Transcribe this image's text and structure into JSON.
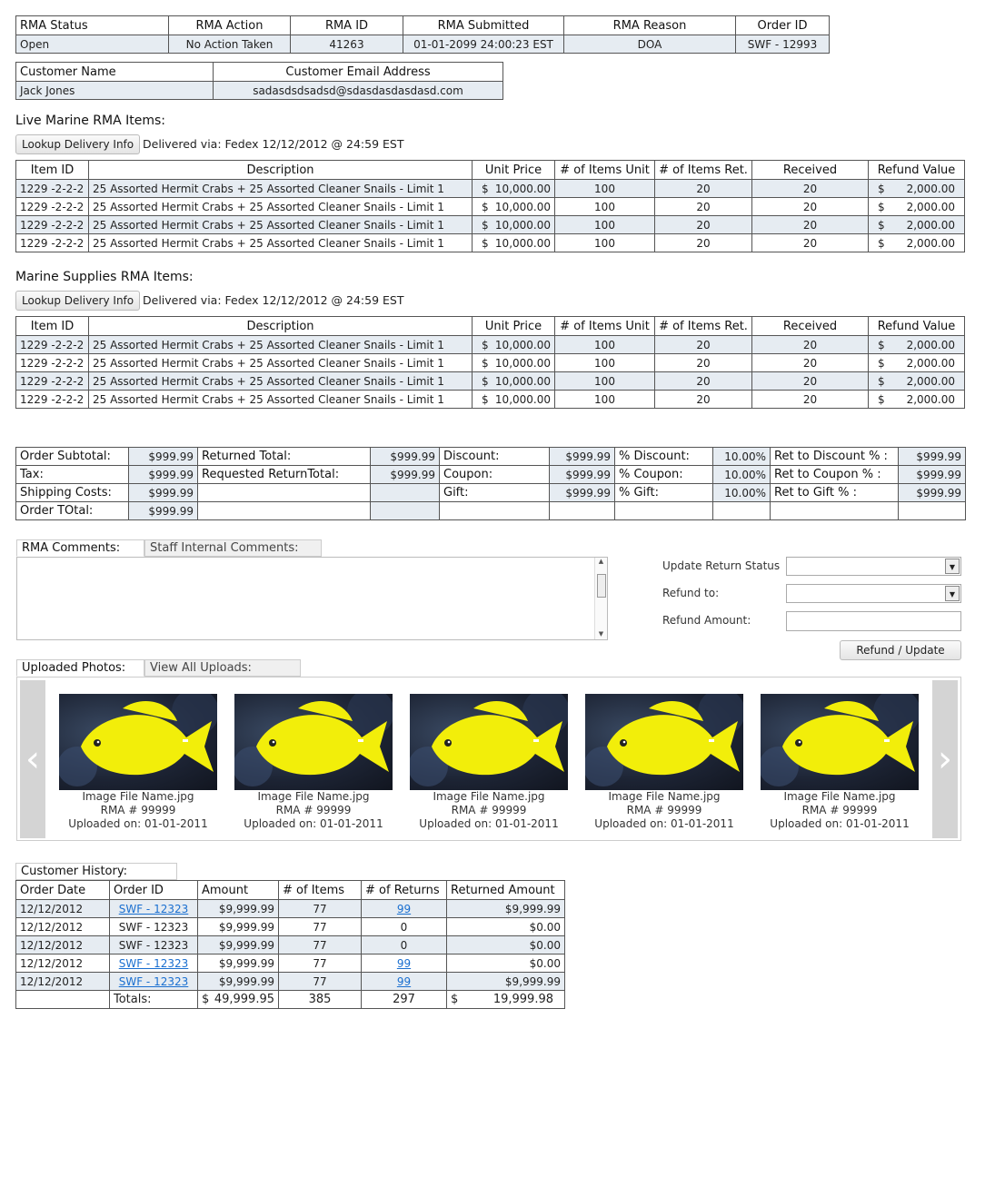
{
  "rma_header": {
    "columns": [
      "RMA Status",
      "RMA Action",
      "RMA ID",
      "RMA Submitted",
      "RMA Reason",
      "Order ID"
    ],
    "values": [
      "Open",
      "No Action Taken",
      "41263",
      "01-01-2099 24:00:23 EST",
      "DOA",
      "SWF - 12993"
    ]
  },
  "customer": {
    "columns": [
      "Customer Name",
      "Customer Email Address"
    ],
    "values": [
      "Jack Jones",
      "sadasdsdsadsd@sdasdasdasdasd.com"
    ]
  },
  "live_marine": {
    "title": "Live Marine RMA Items:",
    "lookup_label": "Lookup Delivery Info",
    "delivered_text": "Delivered via: Fedex 12/12/2012 @ 24:59 EST",
    "columns": [
      "Item ID",
      "Description",
      "Unit Price",
      "# of Items Unit",
      "# of Items Ret.",
      "Received",
      "Refund Value"
    ],
    "rows": [
      [
        "1229 -2-2-2",
        "25 Assorted Hermit Crabs + 25 Assorted Cleaner Snails - Limit 1",
        "$",
        "10,000.00",
        "100",
        "20",
        "20",
        "$",
        "2,000.00"
      ],
      [
        "1229 -2-2-2",
        "25 Assorted Hermit Crabs + 25 Assorted Cleaner Snails - Limit 1",
        "$",
        "10,000.00",
        "100",
        "20",
        "20",
        "$",
        "2,000.00"
      ],
      [
        "1229 -2-2-2",
        "25 Assorted Hermit Crabs + 25 Assorted Cleaner Snails - Limit 1",
        "$",
        "10,000.00",
        "100",
        "20",
        "20",
        "$",
        "2,000.00"
      ],
      [
        "1229 -2-2-2",
        "25 Assorted Hermit Crabs + 25 Assorted Cleaner Snails - Limit 1",
        "$",
        "10,000.00",
        "100",
        "20",
        "20",
        "$",
        "2,000.00"
      ]
    ]
  },
  "marine_supplies": {
    "title": "Marine Supplies RMA Items:",
    "lookup_label": "Lookup Delivery Info",
    "delivered_text": "Delivered via: Fedex 12/12/2012 @ 24:59 EST",
    "columns": [
      "Item ID",
      "Description",
      "Unit Price",
      "# of Items Unit",
      "# of Items Ret.",
      "Received",
      "Refund Value"
    ],
    "rows": [
      [
        "1229 -2-2-2",
        "25 Assorted Hermit Crabs + 25 Assorted Cleaner Snails - Limit 1",
        "$",
        "10,000.00",
        "100",
        "20",
        "20",
        "$",
        "2,000.00"
      ],
      [
        "1229 -2-2-2",
        "25 Assorted Hermit Crabs + 25 Assorted Cleaner Snails - Limit 1",
        "$",
        "10,000.00",
        "100",
        "20",
        "20",
        "$",
        "2,000.00"
      ],
      [
        "1229 -2-2-2",
        "25 Assorted Hermit Crabs + 25 Assorted Cleaner Snails - Limit 1",
        "$",
        "10,000.00",
        "100",
        "20",
        "20",
        "$",
        "2,000.00"
      ],
      [
        "1229 -2-2-2",
        "25 Assorted Hermit Crabs + 25 Assorted Cleaner Snails - Limit 1",
        "$",
        "10,000.00",
        "100",
        "20",
        "20",
        "$",
        "2,000.00"
      ]
    ]
  },
  "totals": {
    "rows": [
      [
        "Order Subtotal:",
        "$999.99",
        "Returned Total:",
        "$999.99",
        "Discount:",
        "$999.99",
        "% Discount:",
        "10.00%",
        "Ret to Discount % :",
        "$999.99"
      ],
      [
        "Tax:",
        "$999.99",
        "Requested ReturnTotal:",
        "$999.99",
        "Coupon:",
        "$999.99",
        "% Coupon:",
        "10.00%",
        "Ret to Coupon % :",
        "$999.99"
      ],
      [
        "Shipping Costs:",
        "$999.99",
        "",
        "",
        "Gift:",
        "$999.99",
        "% Gift:",
        "10.00%",
        "Ret to Gift % :",
        "$999.99"
      ],
      [
        "Order TOtal:",
        "$999.99",
        "",
        "",
        "",
        "",
        "",
        "",
        "",
        ""
      ]
    ]
  },
  "comments": {
    "tab_rma": "RMA Comments:",
    "tab_staff": "Staff Internal Comments:",
    "text": ""
  },
  "update_form": {
    "status_label": "Update Return Status",
    "refund_to_label": "Refund to:",
    "refund_amount_label": "Refund Amount:",
    "status_value": "",
    "refund_to_value": "",
    "refund_amount_value": "",
    "submit_label": "Refund / Update"
  },
  "uploads": {
    "tab_uploaded": "Uploaded Photos:",
    "tab_view_all": "View All Uploads:",
    "photos": [
      {
        "file": "Image File Name.jpg",
        "rma": "RMA # 99999",
        "uploaded": "Uploaded on: 01-01-2011"
      },
      {
        "file": "Image File Name.jpg",
        "rma": "RMA # 99999",
        "uploaded": "Uploaded on: 01-01-2011"
      },
      {
        "file": "Image File Name.jpg",
        "rma": "RMA # 99999",
        "uploaded": "Uploaded on: 01-01-2011"
      },
      {
        "file": "Image File Name.jpg",
        "rma": "RMA # 99999",
        "uploaded": "Uploaded on: 01-01-2011"
      },
      {
        "file": "Image File Name.jpg",
        "rma": "RMA # 99999",
        "uploaded": "Uploaded on: 01-01-2011"
      }
    ]
  },
  "history": {
    "title": "Customer History:",
    "columns": [
      "Order Date",
      "Order ID",
      "Amount",
      "# of Items",
      "# of Returns",
      "Returned Amount"
    ],
    "rows": [
      {
        "date": "12/12/2012",
        "order": "SWF - 12323",
        "order_link": true,
        "amount": "$9,999.99",
        "items": "77",
        "returns": "99",
        "returns_link": true,
        "returned": "$9,999.99"
      },
      {
        "date": "12/12/2012",
        "order": "SWF - 12323",
        "order_link": false,
        "amount": "$9,999.99",
        "items": "77",
        "returns": "0",
        "returns_link": false,
        "returned": "$0.00"
      },
      {
        "date": "12/12/2012",
        "order": "SWF - 12323",
        "order_link": false,
        "amount": "$9,999.99",
        "items": "77",
        "returns": "0",
        "returns_link": false,
        "returned": "$0.00"
      },
      {
        "date": "12/12/2012",
        "order": "SWF - 12323",
        "order_link": true,
        "amount": "$9,999.99",
        "items": "77",
        "returns": "99",
        "returns_link": true,
        "returned": "$0.00"
      },
      {
        "date": "12/12/2012",
        "order": "SWF - 12323",
        "order_link": true,
        "amount": "$9,999.99",
        "items": "77",
        "returns": "99",
        "returns_link": true,
        "returned": "$9,999.99"
      }
    ],
    "totals": {
      "label": "Totals:",
      "amount_sym": "$",
      "amount": "49,999.95",
      "items": "385",
      "returns": "297",
      "returned_sym": "$",
      "returned": "19,999.98"
    }
  },
  "colors": {
    "row_shade": "#e6ecf2",
    "link": "#1a6fd0",
    "fish": "#f2ee0a"
  }
}
